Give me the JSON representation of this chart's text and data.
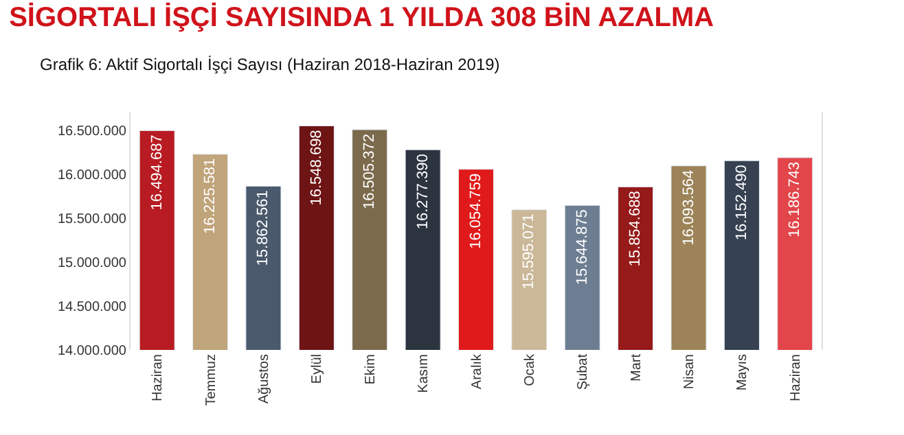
{
  "chart_data": {
    "type": "bar",
    "title": "SİGORTALI İŞÇİ SAYISINDA 1 YILDA 308 BİN AZALMA",
    "subtitle": "Grafik 6: Aktif Sigortalı İşçi Sayısı (Haziran 2018-Haziran 2019)",
    "categories": [
      "Haziran",
      "Temmuz",
      "Ağustos",
      "Eylül",
      "Ekim",
      "Kasım",
      "Aralık",
      "Ocak",
      "Şubat",
      "Mart",
      "Nisan",
      "Mayıs",
      "Haziran"
    ],
    "values": [
      16494687,
      16225581,
      15862561,
      16548698,
      16505372,
      16277390,
      16054759,
      15595071,
      15644875,
      15854688,
      16093564,
      16152490,
      16186743
    ],
    "value_labels": [
      "16.494.687",
      "16.225.581",
      "15.862.561",
      "16.548.698",
      "16.505.372",
      "16.277.390",
      "16.054.759",
      "15.595.071",
      "15.644.875",
      "15.854.688",
      "16.093.564",
      "16.152.490",
      "16.186.743"
    ],
    "colors": [
      "#b81c22",
      "#c0a47a",
      "#4a5a6c",
      "#6e1414",
      "#7c6a4c",
      "#2c3440",
      "#e01a1a",
      "#cbb898",
      "#6e7e92",
      "#961a1a",
      "#9c8458",
      "#364252",
      "#e2454a"
    ],
    "ylim": [
      14000000,
      16700000
    ],
    "yticks": [
      {
        "value": 14000000,
        "label": "14.000.000"
      },
      {
        "value": 14500000,
        "label": "14.500.000"
      },
      {
        "value": 15000000,
        "label": "15.000.000"
      },
      {
        "value": 15500000,
        "label": "15.500.000"
      },
      {
        "value": 16000000,
        "label": "16.000.000"
      },
      {
        "value": 16500000,
        "label": "16.500.000"
      }
    ],
    "ylabel": null
  }
}
